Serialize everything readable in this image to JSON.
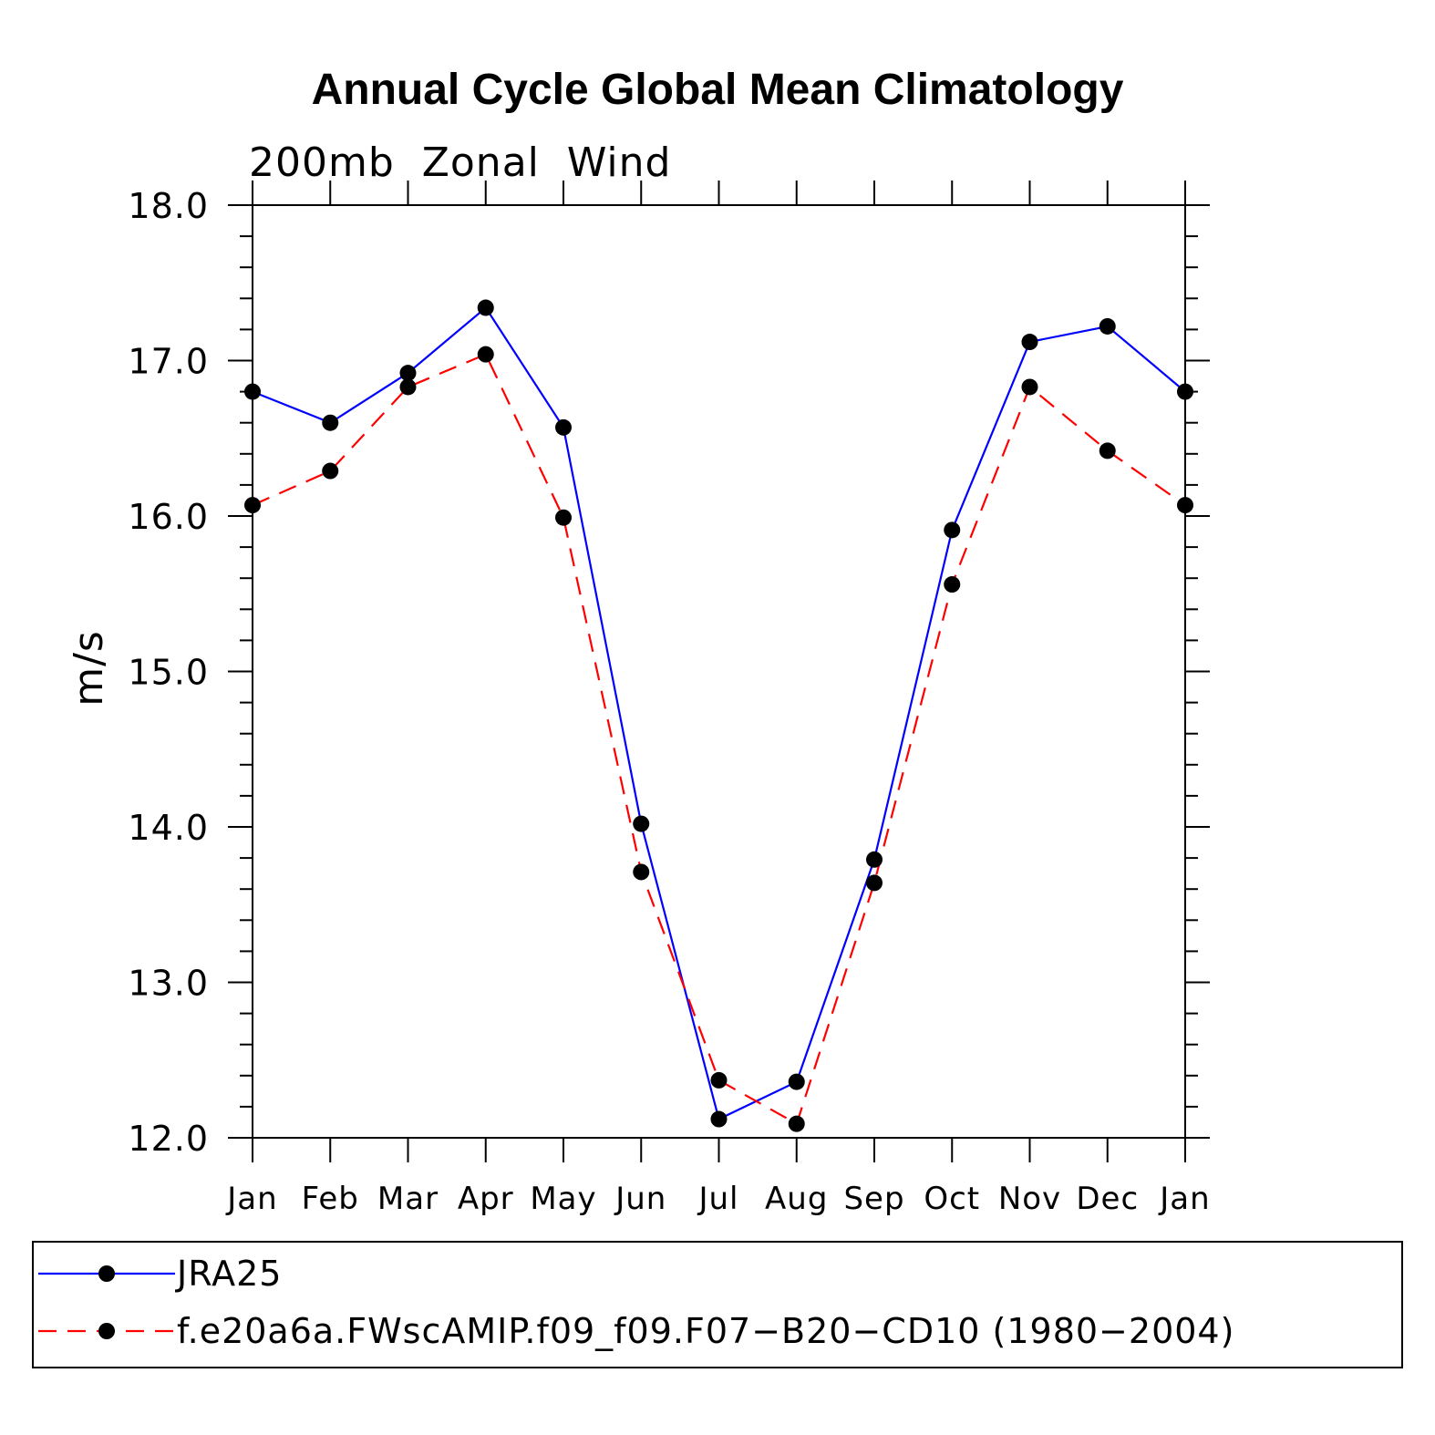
{
  "chart_data": {
    "type": "line",
    "title": "Annual Cycle Global Mean Climatology",
    "subtitle": "200mb  Zonal  Wind",
    "xlabel": "",
    "ylabel": "m/s",
    "ylim": [
      12.0,
      18.0
    ],
    "yticks": [
      "12.0",
      "13.0",
      "14.0",
      "15.0",
      "16.0",
      "17.0",
      "18.0"
    ],
    "categories": [
      "Jan",
      "Feb",
      "Mar",
      "Apr",
      "May",
      "Jun",
      "Jul",
      "Aug",
      "Sep",
      "Oct",
      "Nov",
      "Dec",
      "Jan"
    ],
    "series": [
      {
        "name": "JRA25",
        "color": "#0000ff",
        "style": "solid",
        "values": [
          16.8,
          16.6,
          16.92,
          17.34,
          16.57,
          14.02,
          12.12,
          12.36,
          13.79,
          15.91,
          17.12,
          17.22,
          16.8
        ]
      },
      {
        "name": "f.e20a6a.FWscAMIP.f09_f09.F07−B20−CD10 (1980−2004)",
        "color": "#ff0000",
        "style": "dashed",
        "values": [
          16.07,
          16.29,
          16.83,
          17.04,
          15.99,
          13.71,
          12.37,
          12.09,
          13.64,
          15.56,
          16.83,
          16.42,
          16.07
        ]
      }
    ],
    "legend_position": "bottom",
    "grid": false
  }
}
